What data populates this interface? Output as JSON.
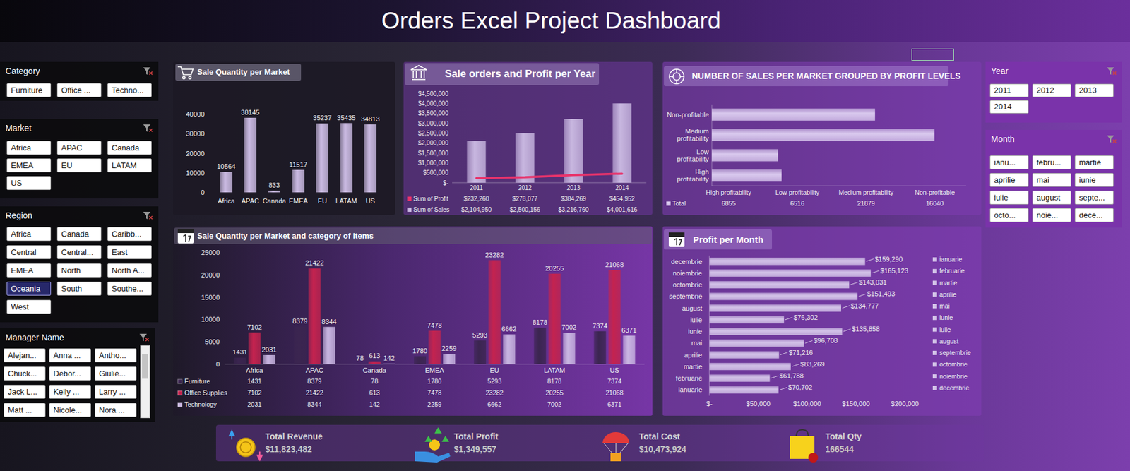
{
  "title": "Orders Excel Project Dashboard",
  "slicers": [
    {
      "title": "Category",
      "items": [
        "Furniture",
        "Office ...",
        "Techno..."
      ]
    },
    {
      "title": "Market",
      "items": [
        "Africa",
        "APAC",
        "Canada",
        "EMEA",
        "EU",
        "LATAM",
        "US"
      ]
    },
    {
      "title": "Region",
      "items": [
        "Africa",
        "Canada",
        "Caribb...",
        "Central",
        "Central...",
        "East",
        "EMEA",
        "North",
        "North A...",
        "Oceania",
        "South",
        "Southe...",
        "West"
      ],
      "selected": 9
    },
    {
      "title": "Manager Name",
      "items": [
        "Alejan...",
        "Anna ...",
        "Antho...",
        "Chuck...",
        "Debor...",
        "Giulie...",
        "Jack L...",
        "Kelly ...",
        "Larry ...",
        "Matt ...",
        "Nicole...",
        "Nora ..."
      ]
    },
    {
      "title": "Year",
      "items": [
        "2011",
        "2012",
        "2013",
        "2014"
      ]
    },
    {
      "title": "Month",
      "items": [
        "ianu...",
        "febru...",
        "martie",
        "aprilie",
        "mai",
        "iunie",
        "iulie",
        "august",
        "septe...",
        "octo...",
        "noie...",
        "dece..."
      ]
    }
  ],
  "kpis": [
    {
      "label": "Total Revenue",
      "value": "$11,823,482"
    },
    {
      "label": "Total Profit",
      "value": "$1,349,557"
    },
    {
      "label": "Total Cost",
      "value": "$10,473,924"
    },
    {
      "label": "Total Qty",
      "value": "166544"
    }
  ],
  "chart_data": [
    {
      "type": "bar",
      "title": "Sale Quantity per Market",
      "categories": [
        "Africa",
        "APAC",
        "Canada",
        "EMEA",
        "EU",
        "LATAM",
        "US"
      ],
      "values": [
        10564,
        38145,
        833,
        11517,
        35237,
        35435,
        34813
      ],
      "color": "#cbbbe3",
      "ylim": [
        0,
        40000
      ],
      "yticks": [
        0,
        10000,
        20000,
        30000,
        40000
      ],
      "grid": false,
      "data_labels": true
    },
    {
      "type": "bar",
      "title": "Sale orders and Profit per Year",
      "categories": [
        "2011",
        "2012",
        "2013",
        "2014"
      ],
      "series": [
        {
          "name": "Sum of Profit",
          "type": "line",
          "color": "#e8336b",
          "values": [
            232260,
            278077,
            384269,
            454952
          ],
          "value_labels": [
            "$232,260",
            "$278,077",
            "$384,269",
            "$454,952"
          ]
        },
        {
          "name": "Sum of Sales",
          "type": "bar",
          "color": "#c8b7e0",
          "values": [
            2104950,
            2500156,
            3216760,
            4001616
          ],
          "value_labels": [
            "$2,104,950",
            "$2,500,156",
            "$3,216,760",
            "$4,001,616"
          ]
        }
      ],
      "ylim": [
        0,
        4500000
      ],
      "yticks": [
        {
          "value": 0,
          "label": "$-"
        },
        {
          "value": 500000,
          "label": "$500,000"
        },
        {
          "value": 1000000,
          "label": "$1,000,000"
        },
        {
          "value": 1500000,
          "label": "$1,500,000"
        },
        {
          "value": 2000000,
          "label": "$2,000,000"
        },
        {
          "value": 2500000,
          "label": "$2,500,000"
        },
        {
          "value": 3000000,
          "label": "$3,000,000"
        },
        {
          "value": 3500000,
          "label": "$3,500,000"
        },
        {
          "value": 4000000,
          "label": "$4,000,000"
        },
        {
          "value": 4500000,
          "label": "$4,500,000"
        }
      ],
      "grid": false
    },
    {
      "type": "bar",
      "orientation": "horizontal",
      "title": "NUMBER OF SALES PER MARKET GROUPED BY PROFIT LEVELS",
      "categories": [
        "High profitability",
        "Low profitability",
        "Medium profitability",
        "Non-profitable"
      ],
      "series": [
        {
          "name": "Total",
          "color": "#d9c9ee",
          "values": [
            6855,
            6516,
            21879,
            16040
          ]
        }
      ],
      "xlim": [
        0,
        25000
      ],
      "tick_labels": "y",
      "grid": false
    },
    {
      "type": "bar",
      "title": "Sale Quantity per Market and category of items",
      "categories": [
        "Africa",
        "APAC",
        "Canada",
        "EMEA",
        "EU",
        "LATAM",
        "US"
      ],
      "series": [
        {
          "name": "Furniture",
          "color": "#3b2550",
          "values": [
            1431,
            8379,
            78,
            1780,
            5293,
            8178,
            7374
          ]
        },
        {
          "name": "Office Supplies",
          "color": "#c4234f",
          "values": [
            7102,
            21422,
            613,
            7478,
            23282,
            20255,
            21068
          ]
        },
        {
          "name": "Technology",
          "color": "#c9b6e2",
          "values": [
            2031,
            8344,
            142,
            2259,
            6662,
            7002,
            6371
          ]
        }
      ],
      "ylim": [
        0,
        25000
      ],
      "yticks": [
        0,
        5000,
        10000,
        15000,
        20000,
        25000
      ],
      "grid": false,
      "data_labels": true
    },
    {
      "type": "bar",
      "orientation": "horizontal",
      "title": "Profit per Month",
      "categories": [
        "ianuarie",
        "februarie",
        "martie",
        "aprilie",
        "mai",
        "iunie",
        "iulie",
        "august",
        "septembrie",
        "octombrie",
        "noiembrie",
        "decembrie"
      ],
      "values": [
        70702,
        61788,
        83269,
        71216,
        96708,
        135858,
        76302,
        134777,
        151493,
        143031,
        165123,
        159290
      ],
      "value_labels": [
        "$70,702",
        "$61,788",
        "$83,269",
        "$71,216",
        "$96,708",
        "$135,858",
        "$76,302",
        "$134,777",
        "$151,493",
        "$143,031",
        "$165,123",
        "$159,290"
      ],
      "color": "#d3c3e8",
      "xlim": [
        0,
        200000
      ],
      "xticks": [
        {
          "value": 0,
          "label": "$-"
        },
        {
          "value": 50000,
          "label": "$50,000"
        },
        {
          "value": 100000,
          "label": "$100,000"
        },
        {
          "value": 150000,
          "label": "$150,000"
        },
        {
          "value": 200000,
          "label": "$200,000"
        }
      ],
      "grid": false,
      "data_labels": true,
      "legend": "right"
    }
  ]
}
